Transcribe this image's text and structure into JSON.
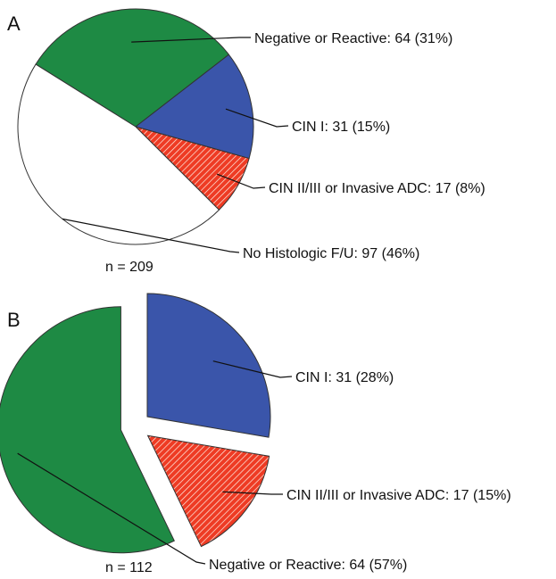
{
  "chart_data": [
    {
      "type": "pie",
      "panel": "A",
      "n_label": "n = 209",
      "slices": [
        {
          "name": "Negative or Reactive",
          "value": 64,
          "percent": 31,
          "label": "Negative or Reactive: 64 (31%)",
          "color": "#1e8a44",
          "hatch": false
        },
        {
          "name": "CIN I",
          "value": 31,
          "percent": 15,
          "label": "CIN I: 31 (15%)",
          "color": "#3a55aa",
          "hatch": false
        },
        {
          "name": "CIN II/III or Invasive ADC",
          "value": 17,
          "percent": 8,
          "label": "CIN II/III or Invasive ADC: 17 (8%)",
          "color": "#ee3b24",
          "hatch": true
        },
        {
          "name": "No Histologic F/U",
          "value": 97,
          "percent": 46,
          "label": "No Histologic F/U: 97 (46%)",
          "color": "#ffffff",
          "hatch": false
        }
      ]
    },
    {
      "type": "pie",
      "panel": "B",
      "n_label": "n = 112",
      "exploded": true,
      "slices": [
        {
          "name": "CIN I",
          "value": 31,
          "percent": 28,
          "label": "CIN I: 31 (28%)",
          "color": "#3a55aa",
          "hatch": false
        },
        {
          "name": "CIN II/III or Invasive ADC",
          "value": 17,
          "percent": 15,
          "label": "CIN II/III or Invasive ADC: 17 (15%)",
          "color": "#ee3b24",
          "hatch": true
        },
        {
          "name": "Negative or Reactive",
          "value": 64,
          "percent": 57,
          "label": "Negative or Reactive: 64 (57%)",
          "color": "#1e8a44",
          "hatch": false
        }
      ]
    }
  ]
}
